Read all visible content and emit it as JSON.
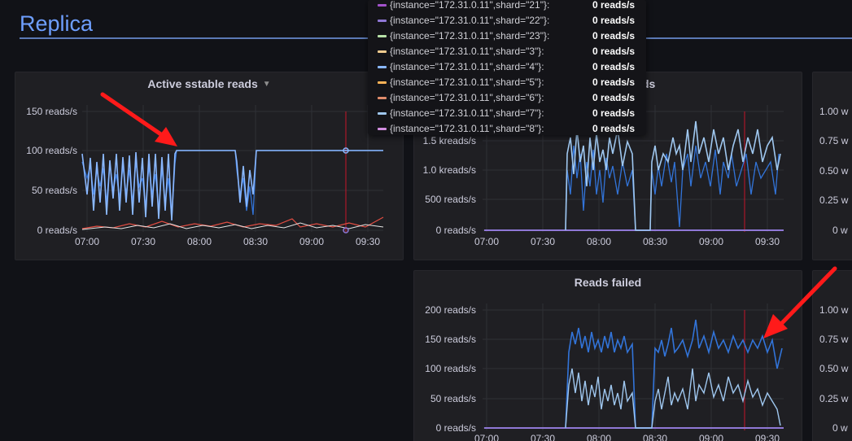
{
  "row": {
    "title": "Replica"
  },
  "tooltip": {
    "items": [
      {
        "label": "{instance=\"172.31.0.11\",shard=\"21\"}:",
        "value": "0 reads/s",
        "color": "#a352cc"
      },
      {
        "label": "{instance=\"172.31.0.11\",shard=\"22\"}:",
        "value": "0 reads/s",
        "color": "#8f78d6"
      },
      {
        "label": "{instance=\"172.31.0.11\",shard=\"23\"}:",
        "value": "0 reads/s",
        "color": "#b8e2a8"
      },
      {
        "label": "{instance=\"172.31.0.11\",shard=\"3\"}:",
        "value": "0 reads/s",
        "color": "#f2cc8f"
      },
      {
        "label": "{instance=\"172.31.0.11\",shard=\"4\"}:",
        "value": "0 reads/s",
        "color": "#8ab8ff"
      },
      {
        "label": "{instance=\"172.31.0.11\",shard=\"5\"}:",
        "value": "0 reads/s",
        "color": "#ffb357"
      },
      {
        "label": "{instance=\"172.31.0.11\",shard=\"6\"}:",
        "value": "0 reads/s",
        "color": "#e08c6b"
      },
      {
        "label": "{instance=\"172.31.0.11\",shard=\"7\"}:",
        "value": "0 reads/s",
        "color": "#9fc7ef"
      },
      {
        "label": "{instance=\"172.31.0.11\",shard=\"8\"}:",
        "value": "0 reads/s",
        "color": "#d28ee0"
      }
    ]
  },
  "panels": {
    "active_sstable_reads": {
      "title": "Active sstable reads",
      "title_suffix_hidden": ""
    },
    "reads_middle": {
      "title_visible_suffix": "ds"
    },
    "reads_failed": {
      "title": "Reads failed"
    },
    "right_top": {},
    "right_bottom": {}
  },
  "chart_data": [
    {
      "type": "line",
      "panel": "Active sstable reads",
      "title": "Active sstable reads",
      "x_ticks": [
        "07:00",
        "07:30",
        "08:00",
        "08:30",
        "09:00",
        "09:30"
      ],
      "y_ticks": [
        "0 reads/s",
        "50 reads/s",
        "100 reads/s",
        "150 reads/s"
      ],
      "ylim": [
        0,
        150
      ],
      "series": [
        {
          "color": "#8ab8ff",
          "x": [
            "07:00",
            "07:20",
            "07:45",
            "07:47",
            "08:10",
            "08:20",
            "08:30",
            "09:35"
          ],
          "y": [
            70,
            60,
            65,
            100,
            100,
            30,
            100,
            100
          ]
        },
        {
          "color": "#3274d9",
          "x": [
            "07:00",
            "07:15",
            "07:30",
            "07:45",
            "08:20",
            "08:30"
          ],
          "y": [
            55,
            40,
            60,
            50,
            35,
            20
          ]
        }
      ],
      "grid": true
    },
    {
      "type": "line",
      "panel": "reads (middle)",
      "x_ticks": [
        "07:00",
        "07:30",
        "08:00",
        "08:30",
        "09:00",
        "09:30"
      ],
      "y_ticks": [
        "0 reads/s",
        "500 reads/s",
        "1.0 kreads/s",
        "1.5 kreads/s"
      ],
      "ylim": [
        0,
        1600
      ],
      "series": [
        {
          "color": "#9fc7ef",
          "x": [
            "07:45",
            "08:00",
            "08:10",
            "08:30",
            "09:00",
            "09:30"
          ],
          "y": [
            1300,
            1200,
            1250,
            1100,
            1300,
            1200
          ]
        },
        {
          "color": "#3274d9",
          "x": [
            "07:45",
            "08:00",
            "08:10",
            "08:30",
            "09:00",
            "09:30"
          ],
          "y": [
            900,
            1100,
            1000,
            1050,
            1150,
            1000
          ]
        }
      ],
      "grid": true
    },
    {
      "type": "line",
      "panel": "Reads failed",
      "title": "Reads failed",
      "x_ticks": [
        "07:00",
        "07:30",
        "08:00",
        "08:30",
        "09:00",
        "09:30"
      ],
      "y_ticks": [
        "0 reads/s",
        "50 reads/s",
        "100 reads/s",
        "150 reads/s",
        "200 reads/s"
      ],
      "ylim": [
        0,
        200
      ],
      "series": [
        {
          "color": "#3274d9",
          "x": [
            "07:45",
            "08:00",
            "08:10",
            "08:30",
            "09:00",
            "09:30"
          ],
          "y": [
            140,
            120,
            130,
            125,
            135,
            120
          ]
        },
        {
          "color": "#9fc7ef",
          "x": [
            "07:45",
            "08:00",
            "08:10",
            "08:30",
            "09:00",
            "09:30"
          ],
          "y": [
            80,
            60,
            75,
            70,
            80,
            40
          ]
        }
      ],
      "grid": true
    },
    {
      "type": "line",
      "panel": "right (partial)",
      "y_ticks": [
        "0 w",
        "0.25 w",
        "0.50 w",
        "0.75 w",
        "1.00 w"
      ]
    }
  ]
}
